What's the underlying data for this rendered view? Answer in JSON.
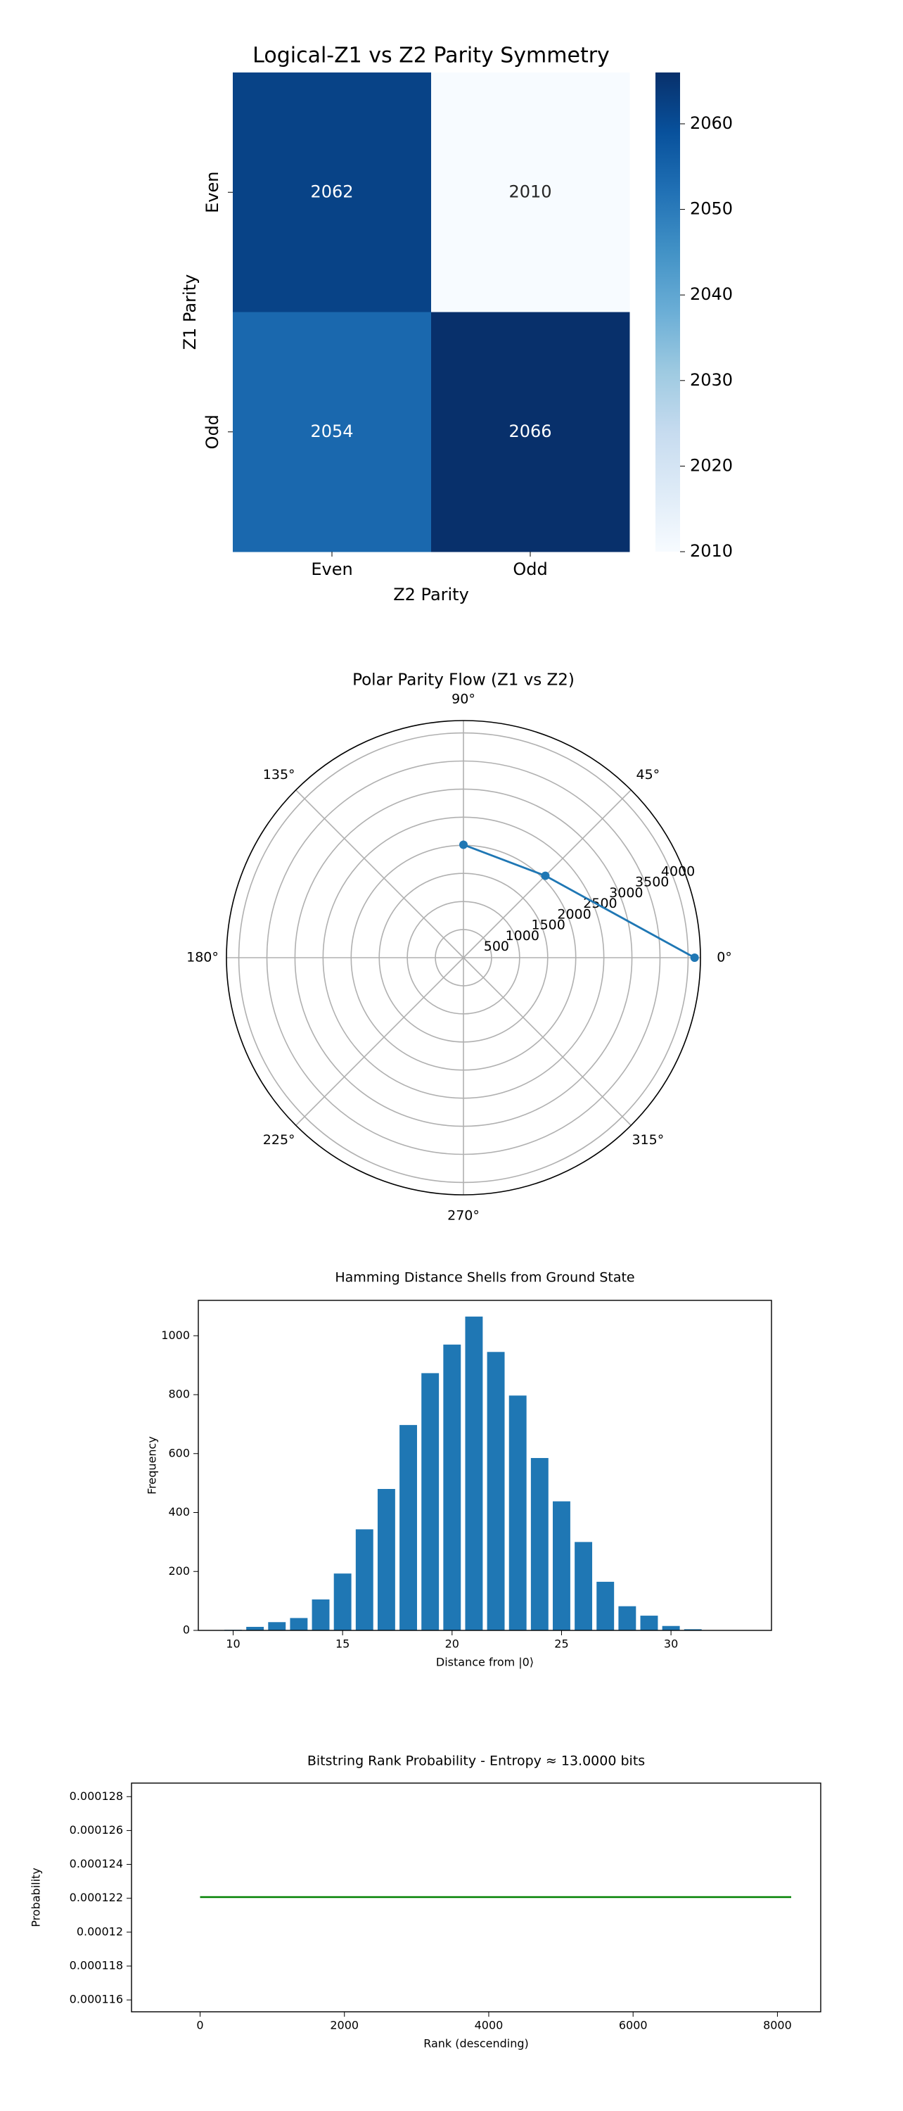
{
  "chart_data": [
    {
      "type": "heatmap",
      "title": "Logical-Z1 vs Z2 Parity Symmetry",
      "x_categories": [
        "Even",
        "Odd"
      ],
      "y_categories": [
        "Even",
        "Odd"
      ],
      "values": [
        [
          2062,
          2010
        ],
        [
          2054,
          2066
        ]
      ],
      "xlabel": "Z2 Parity",
      "ylabel": "Z1 Parity",
      "colormap": "Blues",
      "colorbar_lim": [
        2010,
        2066
      ],
      "colorbar_ticks": [
        2010,
        2020,
        2030,
        2040,
        2050,
        2060
      ]
    },
    {
      "type": "polar",
      "title": "Polar Parity Flow (Z1 vs Z2)",
      "theta": [
        0,
        45,
        90
      ],
      "values": [
        4116,
        2062,
        2010
      ],
      "color": "#1f77b4",
      "rlim": [
        0,
        4220
      ],
      "rticks": [
        500,
        1000,
        1500,
        2000,
        2500,
        3000,
        3500,
        4000
      ],
      "thetaticks": [
        {
          "value": 0,
          "label": "0°"
        },
        {
          "value": 45,
          "label": "45°"
        },
        {
          "value": 90,
          "label": "90°"
        },
        {
          "value": 135,
          "label": "135°"
        },
        {
          "value": 180,
          "label": "180°"
        },
        {
          "value": 225,
          "label": "225°"
        },
        {
          "value": 270,
          "label": "270°"
        },
        {
          "value": 315,
          "label": "315°"
        }
      ],
      "grid": true
    },
    {
      "type": "bar",
      "title": "Hamming Distance Shells from Ground State",
      "x": [
        10,
        11,
        12,
        13,
        14,
        15,
        16,
        17,
        18,
        19,
        20,
        21,
        22,
        23,
        24,
        25,
        26,
        27,
        28,
        29,
        30,
        31,
        32,
        33
      ],
      "values": [
        2,
        12,
        28,
        42,
        105,
        193,
        343,
        480,
        697,
        873,
        970,
        1065,
        945,
        797,
        585,
        438,
        300,
        165,
        82,
        50,
        15,
        4,
        1,
        1
      ],
      "color": "#1f77b4",
      "xlabel": "Distance from |0⟩",
      "ylabel": "Frequency",
      "xlim": [
        8.41,
        34.59
      ],
      "xticks": [
        10,
        15,
        20,
        25,
        30
      ],
      "ylim": [
        0,
        1120
      ],
      "yticks": [
        0,
        200,
        400,
        600,
        800,
        1000
      ]
    },
    {
      "type": "line",
      "title": "Bitstring Rank Probability - Entropy ≈ 13.0000 bits",
      "x": [
        0,
        8191
      ],
      "values": [
        0.0001220703125,
        0.0001220703125
      ],
      "color": "#008000",
      "xlabel": "Rank (descending)",
      "ylabel": "Probability",
      "xlim": [
        -950,
        8600
      ],
      "xticks": [
        0,
        2000,
        4000,
        6000,
        8000
      ],
      "ylim": [
        0.0001153,
        0.0001288
      ],
      "yticks": [
        0.000116,
        0.000118,
        0.00012,
        0.000122,
        0.000124,
        0.000126,
        0.000128
      ]
    }
  ]
}
